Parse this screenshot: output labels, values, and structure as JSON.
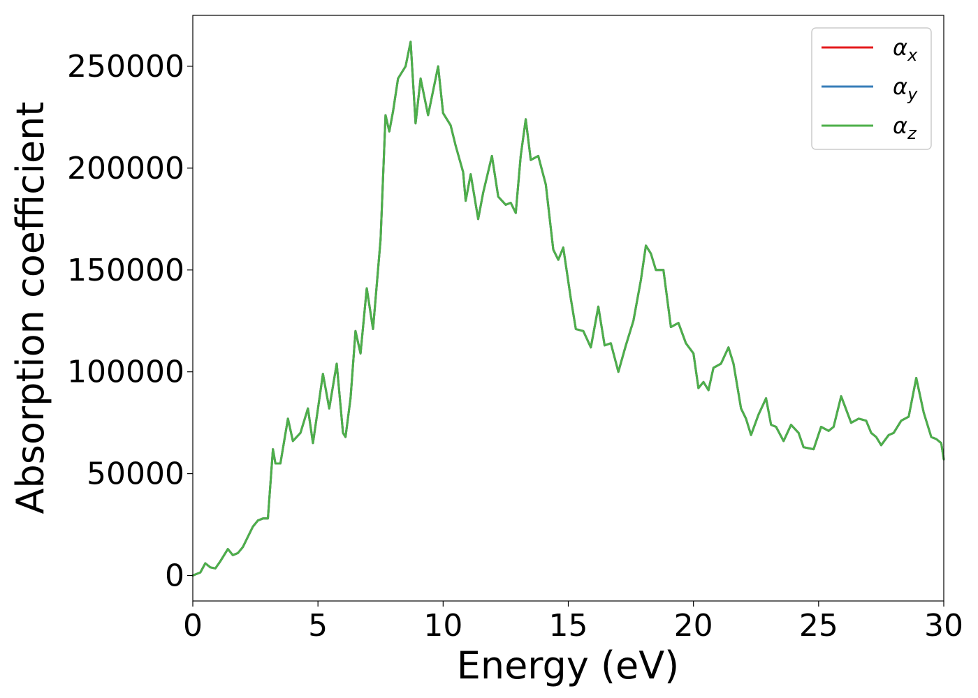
{
  "chart_data": {
    "type": "line",
    "xlabel": "Energy (eV)",
    "ylabel": "Absorption coefficient",
    "xlim": [
      0,
      30
    ],
    "ylim": [
      -12500,
      275000
    ],
    "xticks": [
      0,
      5,
      10,
      15,
      20,
      25,
      30
    ],
    "yticks": [
      0,
      50000,
      100000,
      150000,
      200000,
      250000
    ],
    "grid": false,
    "legend_position": "top-right",
    "series": [
      {
        "name": "αx",
        "base": "α",
        "sub": "x",
        "color": "#e41a1c",
        "x": [
          0,
          0.3,
          0.5,
          0.7,
          0.9,
          1.1,
          1.4,
          1.6,
          1.8,
          2.0,
          2.2,
          2.4,
          2.6,
          2.8,
          3.0,
          3.2,
          3.3,
          3.5,
          3.8,
          4.0,
          4.3,
          4.6,
          4.8,
          5.0,
          5.2,
          5.45,
          5.75,
          6.0,
          6.1,
          6.3,
          6.5,
          6.7,
          6.95,
          7.2,
          7.5,
          7.7,
          7.85,
          8.0,
          8.2,
          8.5,
          8.7,
          8.9,
          9.1,
          9.4,
          9.6,
          9.8,
          10.0,
          10.3,
          10.5,
          10.8,
          10.9,
          11.1,
          11.4,
          11.6,
          11.95,
          12.2,
          12.5,
          12.7,
          12.9,
          13.1,
          13.3,
          13.5,
          13.8,
          14.1,
          14.4,
          14.6,
          14.8,
          15.1,
          15.3,
          15.6,
          15.9,
          16.2,
          16.45,
          16.7,
          17.0,
          17.3,
          17.6,
          17.9,
          18.1,
          18.3,
          18.5,
          18.8,
          19.1,
          19.4,
          19.7,
          20.0,
          20.2,
          20.4,
          20.6,
          20.8,
          21.1,
          21.4,
          21.6,
          21.9,
          22.1,
          22.3,
          22.6,
          22.9,
          23.1,
          23.3,
          23.6,
          23.9,
          24.2,
          24.4,
          24.8,
          25.1,
          25.4,
          25.6,
          25.9,
          26.3,
          26.6,
          26.9,
          27.1,
          27.3,
          27.5,
          27.8,
          28.0,
          28.3,
          28.6,
          28.9,
          29.2,
          29.5,
          29.7,
          29.9,
          30.0
        ],
        "y": [
          0,
          1500,
          6000,
          4000,
          3500,
          7000,
          13000,
          10000,
          11000,
          14000,
          19000,
          24000,
          27000,
          28000,
          28000,
          62000,
          55000,
          55000,
          77000,
          66000,
          70000,
          82000,
          65000,
          82000,
          99000,
          82000,
          104000,
          70000,
          68000,
          87000,
          120000,
          109000,
          141000,
          121000,
          165000,
          226000,
          218000,
          228000,
          244000,
          250000,
          262000,
          222000,
          244000,
          226000,
          238000,
          250000,
          227000,
          221000,
          211000,
          198000,
          184000,
          197000,
          175000,
          188000,
          206000,
          186000,
          182000,
          183000,
          178000,
          206000,
          224000,
          204000,
          206000,
          192000,
          160000,
          155000,
          161000,
          136000,
          121000,
          120000,
          112000,
          132000,
          113000,
          114000,
          100000,
          113000,
          125000,
          145000,
          162000,
          158000,
          150000,
          150000,
          122000,
          124000,
          114000,
          109000,
          92000,
          95000,
          91000,
          102000,
          104000,
          112000,
          104000,
          82000,
          77000,
          69000,
          79000,
          87000,
          74000,
          73000,
          66000,
          74000,
          70000,
          63000,
          62000,
          73000,
          71000,
          73000,
          88000,
          75000,
          77000,
          76000,
          70000,
          68000,
          64000,
          69000,
          70000,
          76000,
          78000,
          97000,
          80000,
          68000,
          67000,
          65000,
          57000
        ]
      },
      {
        "name": "αy",
        "base": "α",
        "sub": "y",
        "color": "#377eb8",
        "x": [
          0,
          0.3,
          0.5,
          0.7,
          0.9,
          1.1,
          1.4,
          1.6,
          1.8,
          2.0,
          2.2,
          2.4,
          2.6,
          2.8,
          3.0,
          3.2,
          3.3,
          3.5,
          3.8,
          4.0,
          4.3,
          4.6,
          4.8,
          5.0,
          5.2,
          5.45,
          5.75,
          6.0,
          6.1,
          6.3,
          6.5,
          6.7,
          6.95,
          7.2,
          7.5,
          7.7,
          7.85,
          8.0,
          8.2,
          8.5,
          8.7,
          8.9,
          9.1,
          9.4,
          9.6,
          9.8,
          10.0,
          10.3,
          10.5,
          10.8,
          10.9,
          11.1,
          11.4,
          11.6,
          11.95,
          12.2,
          12.5,
          12.7,
          12.9,
          13.1,
          13.3,
          13.5,
          13.8,
          14.1,
          14.4,
          14.6,
          14.8,
          15.1,
          15.3,
          15.6,
          15.9,
          16.2,
          16.45,
          16.7,
          17.0,
          17.3,
          17.6,
          17.9,
          18.1,
          18.3,
          18.5,
          18.8,
          19.1,
          19.4,
          19.7,
          20.0,
          20.2,
          20.4,
          20.6,
          20.8,
          21.1,
          21.4,
          21.6,
          21.9,
          22.1,
          22.3,
          22.6,
          22.9,
          23.1,
          23.3,
          23.6,
          23.9,
          24.2,
          24.4,
          24.8,
          25.1,
          25.4,
          25.6,
          25.9,
          26.3,
          26.6,
          26.9,
          27.1,
          27.3,
          27.5,
          27.8,
          28.0,
          28.3,
          28.6,
          28.9,
          29.2,
          29.5,
          29.7,
          29.9,
          30.0
        ],
        "y": [
          0,
          1500,
          6000,
          4000,
          3500,
          7000,
          13000,
          10000,
          11000,
          14000,
          19000,
          24000,
          27000,
          28000,
          28000,
          62000,
          55000,
          55000,
          77000,
          66000,
          70000,
          82000,
          65000,
          82000,
          99000,
          82000,
          104000,
          70000,
          68000,
          87000,
          120000,
          109000,
          141000,
          121000,
          165000,
          226000,
          218000,
          228000,
          244000,
          250000,
          262000,
          222000,
          244000,
          226000,
          238000,
          250000,
          227000,
          221000,
          211000,
          198000,
          184000,
          197000,
          175000,
          188000,
          206000,
          186000,
          182000,
          183000,
          178000,
          206000,
          224000,
          204000,
          206000,
          192000,
          160000,
          155000,
          161000,
          136000,
          121000,
          120000,
          112000,
          132000,
          113000,
          114000,
          100000,
          113000,
          125000,
          145000,
          162000,
          158000,
          150000,
          150000,
          122000,
          124000,
          114000,
          109000,
          92000,
          95000,
          91000,
          102000,
          104000,
          112000,
          104000,
          82000,
          77000,
          69000,
          79000,
          87000,
          74000,
          73000,
          66000,
          74000,
          70000,
          63000,
          62000,
          73000,
          71000,
          73000,
          88000,
          75000,
          77000,
          76000,
          70000,
          68000,
          64000,
          69000,
          70000,
          76000,
          78000,
          97000,
          80000,
          68000,
          67000,
          65000,
          57000
        ]
      },
      {
        "name": "αz",
        "base": "α",
        "sub": "z",
        "color": "#4daf4a",
        "x": [
          0,
          0.3,
          0.5,
          0.7,
          0.9,
          1.1,
          1.4,
          1.6,
          1.8,
          2.0,
          2.2,
          2.4,
          2.6,
          2.8,
          3.0,
          3.2,
          3.3,
          3.5,
          3.8,
          4.0,
          4.3,
          4.6,
          4.8,
          5.0,
          5.2,
          5.45,
          5.75,
          6.0,
          6.1,
          6.3,
          6.5,
          6.7,
          6.95,
          7.2,
          7.5,
          7.7,
          7.85,
          8.0,
          8.2,
          8.5,
          8.7,
          8.9,
          9.1,
          9.4,
          9.6,
          9.8,
          10.0,
          10.3,
          10.5,
          10.8,
          10.9,
          11.1,
          11.4,
          11.6,
          11.95,
          12.2,
          12.5,
          12.7,
          12.9,
          13.1,
          13.3,
          13.5,
          13.8,
          14.1,
          14.4,
          14.6,
          14.8,
          15.1,
          15.3,
          15.6,
          15.9,
          16.2,
          16.45,
          16.7,
          17.0,
          17.3,
          17.6,
          17.9,
          18.1,
          18.3,
          18.5,
          18.8,
          19.1,
          19.4,
          19.7,
          20.0,
          20.2,
          20.4,
          20.6,
          20.8,
          21.1,
          21.4,
          21.6,
          21.9,
          22.1,
          22.3,
          22.6,
          22.9,
          23.1,
          23.3,
          23.6,
          23.9,
          24.2,
          24.4,
          24.8,
          25.1,
          25.4,
          25.6,
          25.9,
          26.3,
          26.6,
          26.9,
          27.1,
          27.3,
          27.5,
          27.8,
          28.0,
          28.3,
          28.6,
          28.9,
          29.2,
          29.5,
          29.7,
          29.9,
          30.0
        ],
        "y": [
          0,
          1500,
          6000,
          4000,
          3500,
          7000,
          13000,
          10000,
          11000,
          14000,
          19000,
          24000,
          27000,
          28000,
          28000,
          62000,
          55000,
          55000,
          77000,
          66000,
          70000,
          82000,
          65000,
          82000,
          99000,
          82000,
          104000,
          70000,
          68000,
          87000,
          120000,
          109000,
          141000,
          121000,
          165000,
          226000,
          218000,
          228000,
          244000,
          250000,
          262000,
          222000,
          244000,
          226000,
          238000,
          250000,
          227000,
          221000,
          211000,
          198000,
          184000,
          197000,
          175000,
          188000,
          206000,
          186000,
          182000,
          183000,
          178000,
          206000,
          224000,
          204000,
          206000,
          192000,
          160000,
          155000,
          161000,
          136000,
          121000,
          120000,
          112000,
          132000,
          113000,
          114000,
          100000,
          113000,
          125000,
          145000,
          162000,
          158000,
          150000,
          150000,
          122000,
          124000,
          114000,
          109000,
          92000,
          95000,
          91000,
          102000,
          104000,
          112000,
          104000,
          82000,
          77000,
          69000,
          79000,
          87000,
          74000,
          73000,
          66000,
          74000,
          70000,
          63000,
          62000,
          73000,
          71000,
          73000,
          88000,
          75000,
          77000,
          76000,
          70000,
          68000,
          64000,
          69000,
          70000,
          76000,
          78000,
          97000,
          80000,
          68000,
          67000,
          65000,
          57000
        ]
      }
    ]
  }
}
